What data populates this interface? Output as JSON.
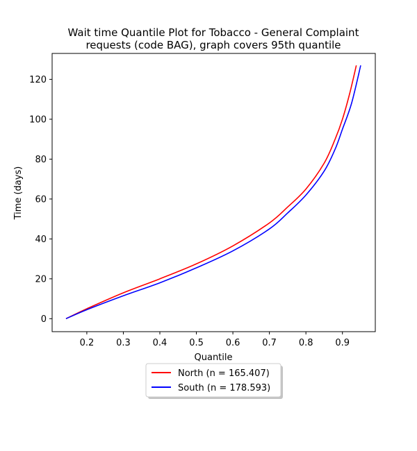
{
  "chart_data": {
    "type": "line",
    "title_line1": "Wait time Quantile Plot for Tobacco - General Complaint",
    "title_line2": "requests (code BAG), graph covers 95th quantile",
    "xlabel": "Quantile",
    "ylabel": "Time (days)",
    "xlim": [
      0.105,
      0.99
    ],
    "ylim": [
      -6.5,
      133
    ],
    "x_ticks": [
      0.2,
      0.3,
      0.4,
      0.5,
      0.6,
      0.7,
      0.8,
      0.9
    ],
    "x_tick_labels": [
      "0.2",
      "0.3",
      "0.4",
      "0.5",
      "0.6",
      "0.7",
      "0.8",
      "0.9"
    ],
    "y_ticks": [
      0,
      20,
      40,
      60,
      80,
      100,
      120
    ],
    "y_tick_labels": [
      "0",
      "20",
      "40",
      "60",
      "80",
      "100",
      "120"
    ],
    "grid": false,
    "legend_placement": "below plot, centered",
    "series": [
      {
        "name": "North (n = 165.407)",
        "color": "#ff0000",
        "points": [
          [
            0.143,
            0
          ],
          [
            0.2,
            5
          ],
          [
            0.3,
            13
          ],
          [
            0.4,
            20
          ],
          [
            0.5,
            27.5
          ],
          [
            0.6,
            36.5
          ],
          [
            0.7,
            48
          ],
          [
            0.75,
            56
          ],
          [
            0.8,
            65
          ],
          [
            0.85,
            78
          ],
          [
            0.88,
            90
          ],
          [
            0.9,
            100
          ],
          [
            0.92,
            113
          ],
          [
            0.938,
            127
          ]
        ]
      },
      {
        "name": "South (n = 178.593)",
        "color": "#0000ff",
        "points": [
          [
            0.143,
            0
          ],
          [
            0.2,
            4.5
          ],
          [
            0.3,
            11.5
          ],
          [
            0.4,
            18
          ],
          [
            0.5,
            25.5
          ],
          [
            0.6,
            34
          ],
          [
            0.7,
            45
          ],
          [
            0.75,
            53
          ],
          [
            0.8,
            62
          ],
          [
            0.85,
            74
          ],
          [
            0.88,
            85
          ],
          [
            0.9,
            95
          ],
          [
            0.925,
            108
          ],
          [
            0.95,
            127
          ]
        ]
      }
    ]
  }
}
